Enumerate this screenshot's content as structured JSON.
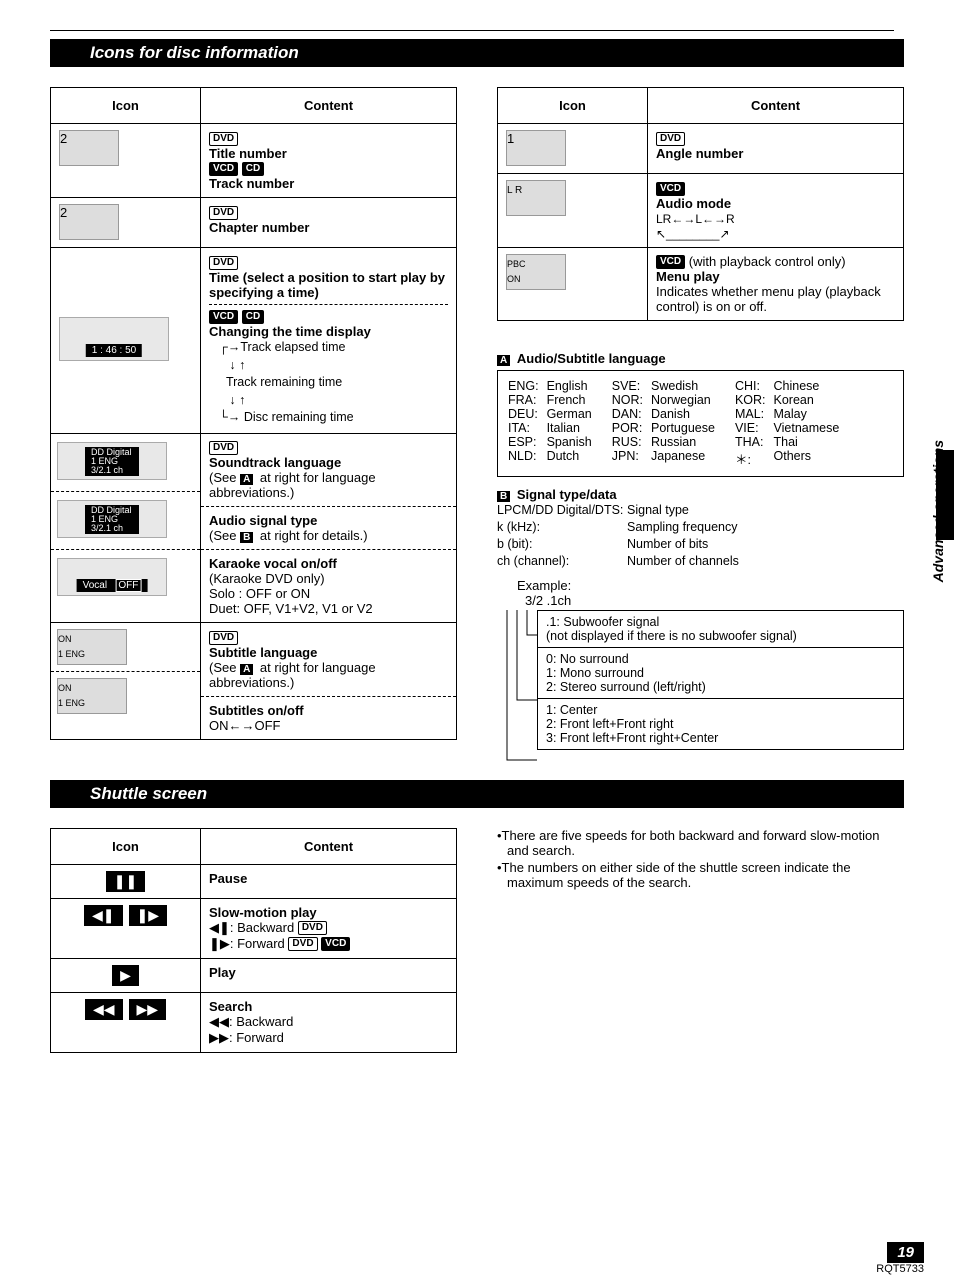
{
  "page": {
    "number": "19",
    "doc_code": "RQT5733",
    "side_tab": "Advanced operations"
  },
  "section1": {
    "title": "Icons for disc information",
    "table_left": {
      "headers": [
        "Icon",
        "Content"
      ],
      "rows": [
        {
          "icon_label": "2",
          "badges": [
            "DVD"
          ],
          "line1": "Title number",
          "badges2": [
            "VCD",
            "CD"
          ],
          "line2": "Track number"
        },
        {
          "icon_label": "2",
          "badges": [
            "DVD"
          ],
          "line1": "Chapter number"
        },
        {
          "icon_label": "1 : 46 : 50",
          "content_html": "time"
        },
        {
          "icon_label": "DD Digital\n1 ENG 3/2.1 ch",
          "badges": [
            "DVD"
          ],
          "line1": "Soundtrack language",
          "line2": "(See A at right for language abbreviations.)",
          "sub": true,
          "sub2_line1": "Audio signal type",
          "sub2_line2": "(See B at right for details.)",
          "sub3_icon": "Vocal  OFF",
          "sub3_line1": "Karaoke vocal on/off",
          "sub3_line2": "(Karaoke DVD only)",
          "sub3_line3": "Solo : OFF or ON",
          "sub3_line4": "Duet: OFF, V1+V2, V1 or V2"
        },
        {
          "icon_label": "ON\n1 ENG",
          "badges": [
            "DVD"
          ],
          "line1": "Subtitle language",
          "line2": "(See A at right for language abbreviations.)",
          "sub": true,
          "sub2_line1": "Subtitles on/off",
          "sub2_line2": "ON←→OFF",
          "sub2_icon": "ON\n1 ENG"
        }
      ]
    },
    "table_right": {
      "headers": [
        "Icon",
        "Content"
      ],
      "rows": [
        {
          "icon_label": "1",
          "badges": [
            "DVD"
          ],
          "line1": "Angle number"
        },
        {
          "icon_label": "L R",
          "badges": [
            "VCD"
          ],
          "line1": "Audio mode",
          "line2": "LR←→L←→R",
          "line3": "↖________↗"
        },
        {
          "icon_label": "PBC\nON",
          "badges": [
            "VCD"
          ],
          "suffix": "(with playback control only)",
          "line1": "Menu play",
          "line2": "Indicates whether menu play (playback control) is on or off."
        }
      ]
    },
    "lang_section": {
      "label": "A",
      "title": "Audio/Subtitle language",
      "rows": [
        [
          "ENG:",
          "English",
          "SVE:",
          "Swedish",
          "CHI:",
          "Chinese"
        ],
        [
          "FRA:",
          "French",
          "NOR:",
          "Norwegian",
          "KOR:",
          "Korean"
        ],
        [
          "DEU:",
          "German",
          "DAN:",
          "Danish",
          "MAL:",
          "Malay"
        ],
        [
          "ITA:",
          "Italian",
          "POR:",
          "Portuguese",
          "VIE:",
          "Vietnamese"
        ],
        [
          "ESP:",
          "Spanish",
          "RUS:",
          "Russian",
          "THA:",
          "Thai"
        ],
        [
          "NLD:",
          "Dutch",
          "JPN:",
          "Japanese",
          "＊:",
          "Others"
        ]
      ]
    },
    "signal_section": {
      "label": "B",
      "title": "Signal type/data",
      "lines": [
        [
          "LPCM/DD Digital/DTS:",
          "Signal type"
        ],
        [
          "k (kHz):",
          "Sampling frequency"
        ],
        [
          "b (bit):",
          "Number of bits"
        ],
        [
          "ch (channel):",
          "Number of channels"
        ]
      ],
      "example_label": "Example:",
      "example_value": "3/2 .1ch",
      "boxes": [
        [
          ".1: Subwoofer signal",
          "(not displayed if there is no subwoofer signal)"
        ],
        [
          "0: No surround",
          "1: Mono surround",
          "2: Stereo surround (left/right)"
        ],
        [
          "1: Center",
          "2: Front left+Front right",
          "3: Front left+Front right+Center"
        ]
      ]
    },
    "time_content": {
      "badges1": [
        "DVD"
      ],
      "line1": "Time (select a position to start play by specifying a time)",
      "badges2": [
        "VCD",
        "CD"
      ],
      "line2": "Changing the time display",
      "tree": [
        "→Track elapsed time",
        "↓ ↑",
        "Track remaining time",
        "↓ ↑",
        "→ Disc remaining time"
      ]
    }
  },
  "section2": {
    "title": "Shuttle screen",
    "table": {
      "headers": [
        "Icon",
        "Content"
      ],
      "rows": [
        {
          "icons": [
            "❚❚"
          ],
          "line1": "Pause"
        },
        {
          "icons": [
            "◀❚",
            "❚▶"
          ],
          "line1": "Slow-motion play",
          "line2": "◀❚: Backward",
          "badge2": "DVD",
          "line3": "❚▶: Forward",
          "badge3a": "DVD",
          "badge3b": "VCD"
        },
        {
          "icons": [
            "▶"
          ],
          "line1": "Play"
        },
        {
          "icons": [
            "◀◀",
            "▶▶"
          ],
          "line1": "Search",
          "line2": "◀◀: Backward",
          "line3": "▶▶: Forward"
        }
      ]
    },
    "notes": [
      "•There are five speeds for both backward and forward slow-motion and search.",
      "•The numbers on either side of the shuttle screen indicate the maximum speeds of the search."
    ]
  }
}
